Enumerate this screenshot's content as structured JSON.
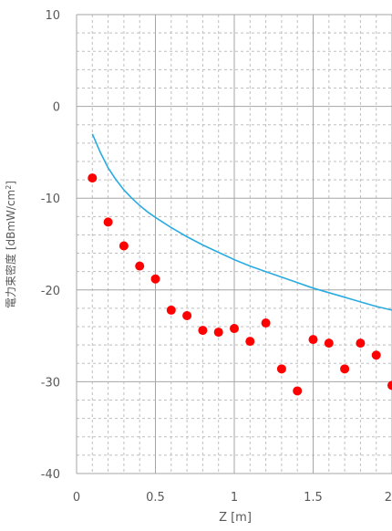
{
  "chart_data": {
    "type": "scatter",
    "title": "",
    "xlabel": "Z [m]",
    "ylabel": "電力束密度 [dBmW/cm²]",
    "ylabel_main": "電力束密度 [dBmW/cm",
    "ylabel_sup": "2",
    "ylabel_tail": "]",
    "xlim": [
      0,
      2
    ],
    "ylim": [
      -40,
      10
    ],
    "grid": true,
    "x_ticks": [
      {
        "value": 0,
        "label": "0"
      },
      {
        "value": 0.5,
        "label": "0.5"
      },
      {
        "value": 1,
        "label": "1"
      },
      {
        "value": 1.5,
        "label": "1.5"
      },
      {
        "value": 2,
        "label": "2"
      }
    ],
    "y_ticks": [
      {
        "value": 10,
        "label": "10"
      },
      {
        "value": 0,
        "label": "0"
      },
      {
        "value": -10,
        "label": "-10"
      },
      {
        "value": -20,
        "label": "-20"
      },
      {
        "value": -30,
        "label": "-30"
      },
      {
        "value": -40,
        "label": "-40"
      }
    ],
    "series": [
      {
        "kind": "line",
        "color": "#29ABE2",
        "x": [
          0.1,
          0.15,
          0.2,
          0.25,
          0.3,
          0.35,
          0.4,
          0.45,
          0.5,
          0.6,
          0.7,
          0.8,
          0.9,
          1.0,
          1.1,
          1.2,
          1.3,
          1.4,
          1.5,
          1.6,
          1.7,
          1.8,
          1.9,
          2.0
        ],
        "y": [
          -3.0,
          -5.0,
          -6.7,
          -8.0,
          -9.1,
          -10.0,
          -10.8,
          -11.5,
          -12.1,
          -13.2,
          -14.2,
          -15.1,
          -15.9,
          -16.7,
          -17.4,
          -18.0,
          -18.6,
          -19.2,
          -19.8,
          -20.3,
          -20.8,
          -21.3,
          -21.8,
          -22.2
        ]
      },
      {
        "kind": "scatter",
        "color": "#FF0000",
        "x": [
          0.1,
          0.2,
          0.3,
          0.4,
          0.5,
          0.6,
          0.7,
          0.8,
          0.9,
          1.0,
          1.1,
          1.2,
          1.3,
          1.4,
          1.5,
          1.6,
          1.7,
          1.8,
          1.9,
          2.0
        ],
        "y": [
          -7.8,
          -12.6,
          -15.2,
          -17.4,
          -18.8,
          -22.2,
          -22.8,
          -24.4,
          -24.6,
          -24.2,
          -25.6,
          -23.6,
          -28.6,
          -31.0,
          -25.4,
          -25.8,
          -28.6,
          -25.8,
          -27.1,
          -30.4
        ]
      }
    ]
  }
}
